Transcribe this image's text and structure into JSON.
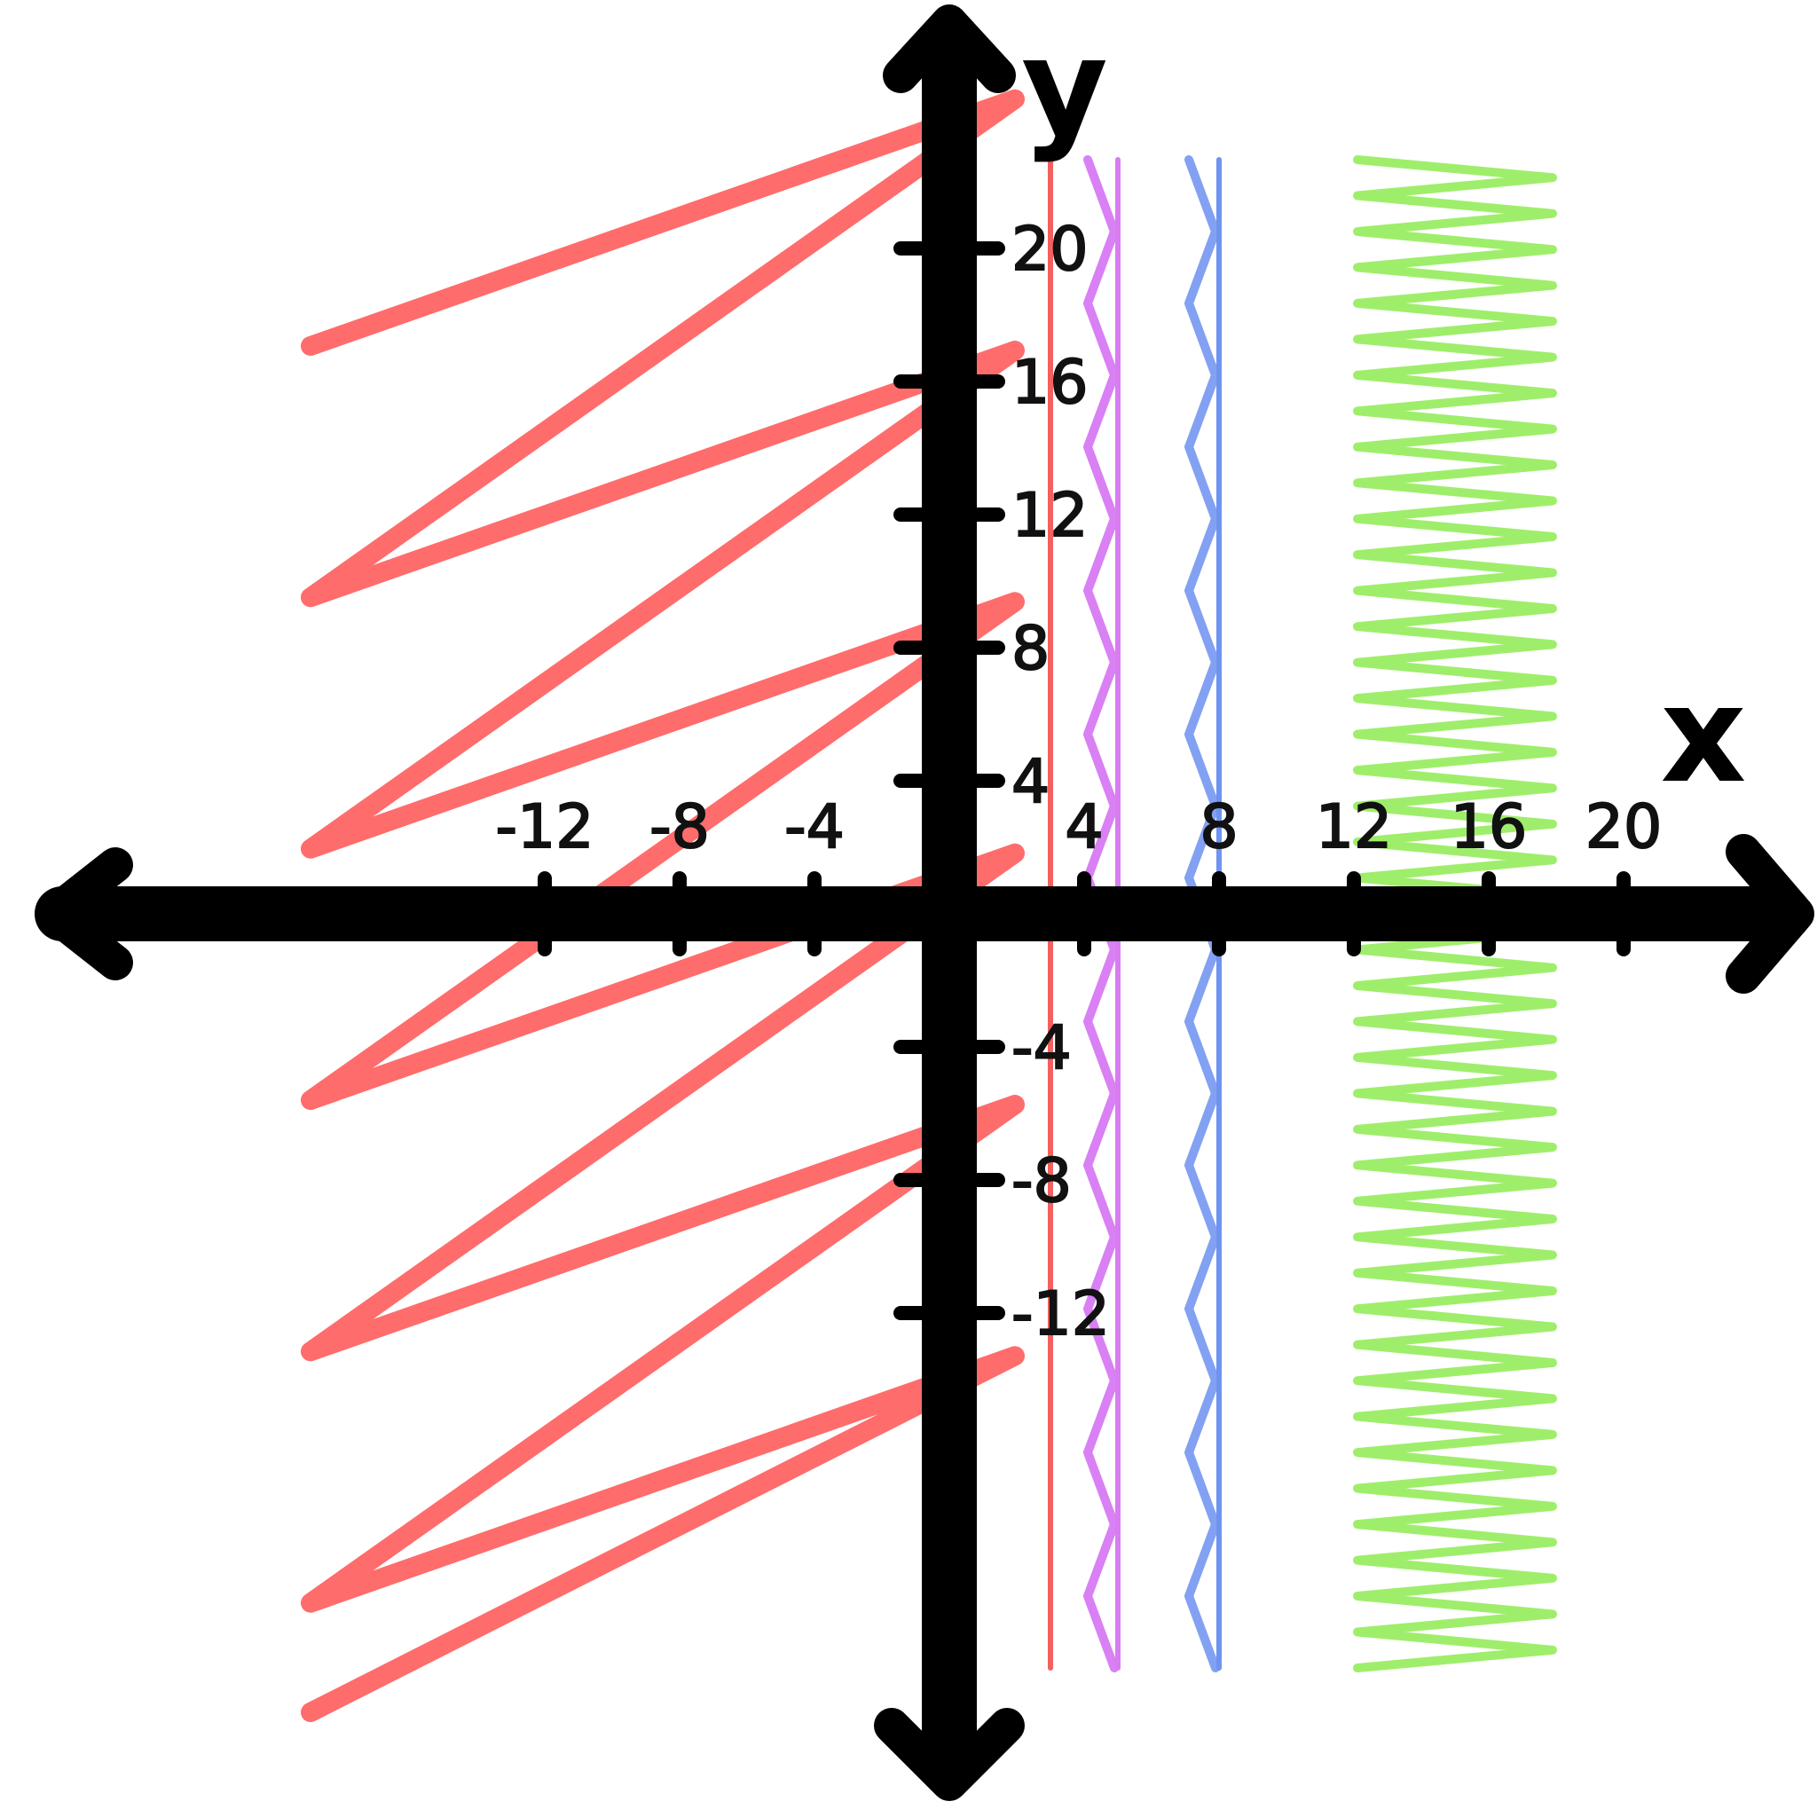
{
  "chart_data": {
    "type": "line",
    "title": "",
    "xlabel": "x",
    "ylabel": "y",
    "xlim": [
      -20,
      20
    ],
    "ylim": [
      -20,
      20
    ],
    "x_ticks": [
      -12,
      -8,
      -4,
      4,
      8,
      12,
      16,
      20
    ],
    "y_ticks": [
      20,
      16,
      12,
      8,
      4,
      -4,
      -8,
      -12
    ],
    "x_tick_labels": [
      "-12",
      "-8",
      "-4",
      "4",
      "8",
      "12",
      "16",
      "20"
    ],
    "y_tick_labels": [
      "20",
      "16",
      "12",
      "8",
      "4",
      "-4",
      "-8",
      "-12"
    ],
    "grid": false,
    "legend": "none",
    "series": [
      {
        "kind": "boundary_line",
        "x": 3,
        "color": "#f4605f"
      },
      {
        "kind": "boundary_line",
        "x": 5,
        "color": "#d97cf2"
      },
      {
        "kind": "boundary_line",
        "x": 8,
        "color": "#6f93f0"
      },
      {
        "kind": "shaded_region",
        "x_range": [
          -20,
          3
        ],
        "color": "#ff3b3b"
      },
      {
        "kind": "shaded_region",
        "x_range": [
          4,
          5
        ],
        "color": "#cc55f0"
      },
      {
        "kind": "shaded_region",
        "x_range": [
          7,
          8
        ],
        "color": "#5a82ee"
      },
      {
        "kind": "shaded_region",
        "x_range": [
          12,
          18
        ],
        "color": "#7fe83a"
      }
    ]
  }
}
